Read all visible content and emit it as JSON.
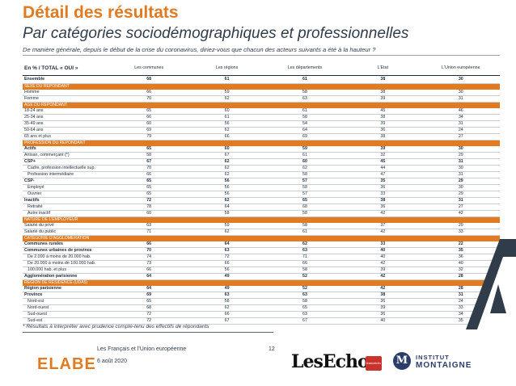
{
  "header": {
    "title": "Détail des résultats",
    "subtitle": "Par catégories sociodémographiques et professionnelles",
    "question": "De manière générale, depuis le début de la crise du coronavirus, diriez-vous que chacun des acteurs suivants a été à la hauteur ?"
  },
  "table": {
    "header_label": "En % / TOTAL « OUI »",
    "columns": [
      "Les communes",
      "Les régions",
      "Les départements",
      "L'Etat",
      "L'Union européenne"
    ],
    "rows": [
      {
        "type": "total",
        "label": "Ensemble",
        "values": [
          "68",
          "61",
          "61",
          "38",
          "30"
        ]
      },
      {
        "type": "section",
        "label": "SEXE DU REPONDANT"
      },
      {
        "type": "item",
        "label": "Homme",
        "values": [
          "66",
          "59",
          "58",
          "38",
          "30"
        ]
      },
      {
        "type": "item",
        "label": "Femme",
        "values": [
          "70",
          "62",
          "63",
          "39",
          "31"
        ]
      },
      {
        "type": "section",
        "label": "AGE DU REPONDANT"
      },
      {
        "type": "item",
        "label": "18-24 ans",
        "values": [
          "65",
          "60",
          "61",
          "45",
          "46"
        ]
      },
      {
        "type": "item",
        "label": "25-34 ans",
        "values": [
          "66",
          "61",
          "58",
          "38",
          "34"
        ]
      },
      {
        "type": "item",
        "label": "35-49 ans",
        "values": [
          "60",
          "56",
          "54",
          "39",
          "31"
        ]
      },
      {
        "type": "item",
        "label": "50-64 ans",
        "values": [
          "69",
          "62",
          "64",
          "36",
          "24"
        ]
      },
      {
        "type": "item",
        "label": "65 ans et plus",
        "values": [
          "79",
          "66",
          "69",
          "38",
          "27"
        ]
      },
      {
        "type": "section",
        "label": "PROFESSION DU REPONDANT"
      },
      {
        "type": "bold",
        "label": "Actifs",
        "values": [
          "65",
          "60",
          "59",
          "39",
          "30"
        ]
      },
      {
        "type": "item",
        "label": "Artisan, commerçant (*)",
        "values": [
          "58",
          "67",
          "61",
          "32",
          "29"
        ]
      },
      {
        "type": "bold",
        "label": "CSP+",
        "values": [
          "67",
          "62",
          "60",
          "45",
          "31"
        ]
      },
      {
        "type": "indent",
        "label": "Cadre, profession intellectuelle sup.",
        "values": [
          "70",
          "62",
          "62",
          "44",
          "30"
        ]
      },
      {
        "type": "indent",
        "label": "Profession intermédiaire",
        "values": [
          "66",
          "62",
          "58",
          "47",
          "31"
        ]
      },
      {
        "type": "bold",
        "label": "CSP-",
        "values": [
          "65",
          "56",
          "57",
          "35",
          "29"
        ]
      },
      {
        "type": "indent",
        "label": "Employé",
        "values": [
          "65",
          "56",
          "58",
          "36",
          "30"
        ]
      },
      {
        "type": "indent",
        "label": "Ouvrier",
        "values": [
          "65",
          "56",
          "57",
          "33",
          "29"
        ]
      },
      {
        "type": "bold",
        "label": "Inactifs",
        "values": [
          "72",
          "62",
          "65",
          "38",
          "31"
        ]
      },
      {
        "type": "indent",
        "label": "Retraité",
        "values": [
          "78",
          "64",
          "68",
          "36",
          "27"
        ]
      },
      {
        "type": "indent",
        "label": "Autre inactif",
        "values": [
          "60",
          "58",
          "58",
          "42",
          "42"
        ]
      },
      {
        "type": "section",
        "label": "NATURE DE L'EMPLOYEUR"
      },
      {
        "type": "item",
        "label": "Salarié du privé",
        "values": [
          "63",
          "59",
          "58",
          "37",
          "29"
        ]
      },
      {
        "type": "item",
        "label": "Salarié du public",
        "values": [
          "71",
          "62",
          "61",
          "42",
          "33"
        ]
      },
      {
        "type": "section",
        "label": "CATEGORIE D'AGGLOMERATION"
      },
      {
        "type": "bold",
        "label": "Communes rurales",
        "values": [
          "66",
          "64",
          "62",
          "33",
          "22"
        ]
      },
      {
        "type": "bold",
        "label": "Communes urbaines de province",
        "values": [
          "70",
          "63",
          "63",
          "40",
          "35"
        ]
      },
      {
        "type": "indent",
        "label": "De 2.000 à moins de 20.000 hab.",
        "values": [
          "74",
          "72",
          "71",
          "40",
          "36"
        ]
      },
      {
        "type": "indent",
        "label": "De 20.000 à moins de 100.000 hab.",
        "values": [
          "73",
          "66",
          "66",
          "42",
          "40"
        ]
      },
      {
        "type": "indent",
        "label": "100.000 hab. et plus",
        "values": [
          "66",
          "56",
          "58",
          "39",
          "32"
        ]
      },
      {
        "type": "bold",
        "label": "Agglomération parisienne",
        "values": [
          "64",
          "49",
          "52",
          "42",
          "28"
        ]
      },
      {
        "type": "section",
        "label": "REGION DE RESIDENCE (UDA5)"
      },
      {
        "type": "bold",
        "label": "Région parisienne",
        "values": [
          "64",
          "49",
          "52",
          "42",
          "28"
        ]
      },
      {
        "type": "bold",
        "label": "Province",
        "values": [
          "69",
          "63",
          "63",
          "38",
          "31"
        ]
      },
      {
        "type": "indent",
        "label": "Nord-est",
        "values": [
          "65",
          "58",
          "58",
          "36",
          "24"
        ]
      },
      {
        "type": "indent",
        "label": "Nord-ouest",
        "values": [
          "68",
          "62",
          "65",
          "39",
          "33"
        ]
      },
      {
        "type": "indent",
        "label": "Sud-ouest",
        "values": [
          "72",
          "66",
          "63",
          "36",
          "34"
        ]
      },
      {
        "type": "indent",
        "label": "Sud-est",
        "values": [
          "72",
          "67",
          "67",
          "40",
          "35"
        ]
      }
    ]
  },
  "footer": {
    "footnote": "* Résultats à interpréter avec prudence compte-tenu des effectifs de répondants",
    "survey": "Les Français et l'Union européenne",
    "date": "6 août 2020",
    "page": "12"
  },
  "logos": {
    "elabe": "ELABE",
    "lesechos": "LesEchos",
    "badge": "franceinfo",
    "institut_line1": "INSTITUT",
    "institut_line2": "MONTAIGNE",
    "institut_mark": "M"
  },
  "colors": {
    "accent": "#e07b22",
    "text": "#1c2a38",
    "navy": "#2b3e6b"
  }
}
